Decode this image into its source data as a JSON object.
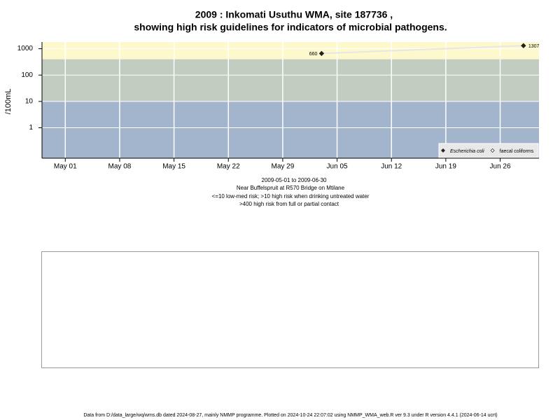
{
  "chart_data": {
    "type": "scatter",
    "title": [
      "2009 : Inkomati Usuthu WMA, site 187736 ,",
      "showing high risk guidelines for indicators of microbial pathogens."
    ],
    "y_label": "/100mL",
    "notes": [
      "2009-05-01 to 2009-06-30",
      "Near Buffelspruit at R570 Bridge on Mtilane",
      "<=10 low-med risk; >10 high risk when drinking untreated water",
      ">400 high risk from full or partial contact"
    ],
    "footer": "Data from D:/data_large/wq/wms.db dated 2024-08-27, mainly NMMP programme. Plotted on 2024-10-24 22:07:02 using NMMP_WMA_web.R ver 9.3 under R version 4.4.1 (2024-06-14 ucrt)",
    "log_y": true,
    "ylim": [
      0.07,
      1800
    ],
    "yticks": [
      1,
      10,
      100,
      1000
    ],
    "xlim": [
      "2009-04-28",
      "2009-07-01"
    ],
    "xticks": [
      {
        "value": "2009-05-01",
        "label": "May 01"
      },
      {
        "value": "2009-05-08",
        "label": "May 08"
      },
      {
        "value": "2009-05-15",
        "label": "May 15"
      },
      {
        "value": "2009-05-22",
        "label": "May 22"
      },
      {
        "value": "2009-05-29",
        "label": "May 29"
      },
      {
        "value": "2009-06-05",
        "label": "Jun 05"
      },
      {
        "value": "2009-06-12",
        "label": "Jun 12"
      },
      {
        "value": "2009-06-19",
        "label": "Jun 19"
      },
      {
        "value": "2009-06-26",
        "label": "Jun 26"
      }
    ],
    "grid": true,
    "bands": [
      {
        "to": 10,
        "color": "#a3b5cd"
      },
      {
        "from": 10,
        "to": 400,
        "color": "#c3ccc1"
      },
      {
        "from": 400,
        "color": "#fdf9cd"
      }
    ],
    "legend": "bottom-right",
    "series": [
      {
        "name": "Escherichia coli",
        "color": "#222222",
        "marker": "filled",
        "x": [
          "2009-06-03",
          "2009-06-29"
        ],
        "values": [
          660,
          1307
        ]
      },
      {
        "name": "faecal coliforms",
        "color": "#222222",
        "marker": "open",
        "x": [],
        "values": []
      }
    ]
  }
}
